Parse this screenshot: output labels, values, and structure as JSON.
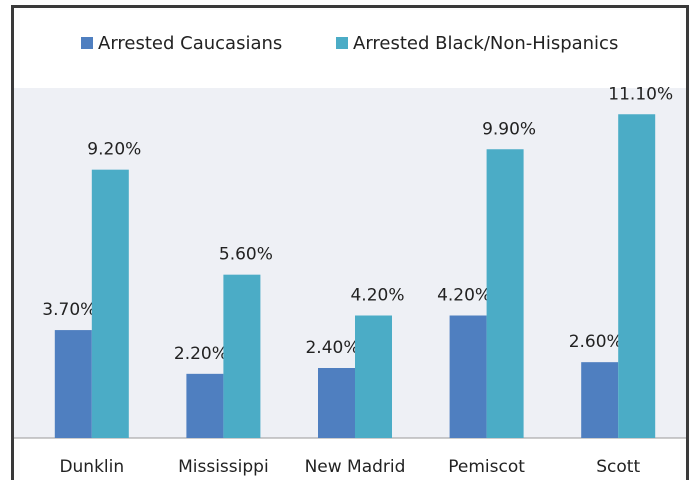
{
  "chart_data": {
    "type": "bar",
    "categories": [
      "Dunklin",
      "Mississippi",
      "New Madrid",
      "Pemiscot",
      "Scott"
    ],
    "series": [
      {
        "name": "Arrested Caucasians",
        "color": "#4f7fc0",
        "values": [
          3.7,
          2.2,
          2.4,
          4.2,
          2.6
        ],
        "value_labels": [
          "3.70%",
          "2.20%",
          "2.40%",
          "4.20%",
          "2.60%"
        ]
      },
      {
        "name": "Arrested Black/Non-Hispanics",
        "color": "#4bacc6",
        "values": [
          9.2,
          5.6,
          4.2,
          9.9,
          11.1
        ],
        "value_labels": [
          "9.20%",
          "5.60%",
          "4.20%",
          "9.90%",
          "11.10%"
        ]
      }
    ],
    "ylim": [
      0,
      12
    ],
    "legend": "top"
  }
}
